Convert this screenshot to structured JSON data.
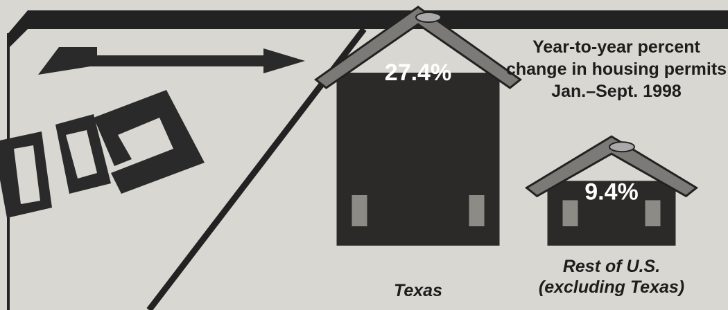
{
  "chart_data": {
    "type": "pictogram",
    "title": "Year-to-year percent change in housing permits Jan.–Sept. 1998",
    "categories": [
      "Texas",
      "Rest of U.S. (excluding Texas)"
    ],
    "values": [
      27.4,
      9.4
    ],
    "value_labels": [
      "27.4%",
      "9.4%"
    ],
    "color": "#2b2a28"
  }
}
